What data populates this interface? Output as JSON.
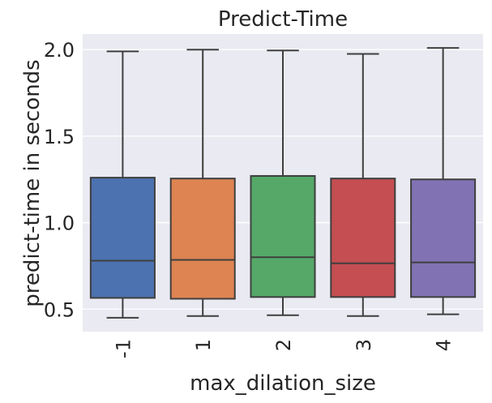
{
  "chart_data": {
    "type": "box",
    "title": "Predict-Time",
    "xlabel": "max_dilation_size",
    "ylabel": "predict-time in seconds",
    "ylim": [
      0.37,
      2.09
    ],
    "yticks": [
      0.5,
      1.0,
      1.5,
      2.0
    ],
    "ytick_labels": [
      "0.5",
      "1.0",
      "1.5",
      "2.0"
    ],
    "grid": true,
    "categories": [
      "-1",
      "1",
      "2",
      "3",
      "4"
    ],
    "colors": [
      "#4c72b0",
      "#dd8452",
      "#55a868",
      "#c44e52",
      "#8172b3"
    ],
    "boxes": [
      {
        "category": "-1",
        "whisker_low": 0.45,
        "q1": 0.565,
        "median": 0.78,
        "q3": 1.26,
        "whisker_high": 1.99
      },
      {
        "category": "1",
        "whisker_low": 0.46,
        "q1": 0.56,
        "median": 0.785,
        "q3": 1.255,
        "whisker_high": 2.0
      },
      {
        "category": "2",
        "whisker_low": 0.465,
        "q1": 0.57,
        "median": 0.8,
        "q3": 1.27,
        "whisker_high": 1.995
      },
      {
        "category": "3",
        "whisker_low": 0.46,
        "q1": 0.57,
        "median": 0.765,
        "q3": 1.255,
        "whisker_high": 1.975
      },
      {
        "category": "4",
        "whisker_low": 0.47,
        "q1": 0.57,
        "median": 0.77,
        "q3": 1.25,
        "whisker_high": 2.01
      }
    ]
  }
}
